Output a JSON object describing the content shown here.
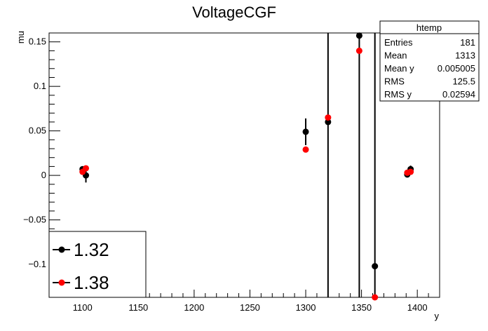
{
  "chart_data": {
    "type": "scatter",
    "title": "VoltageCGF",
    "xlabel": "y",
    "ylabel": "mu",
    "xlim": [
      1070,
      1420
    ],
    "ylim": [
      -0.137,
      0.16
    ],
    "x_ticks": [
      1100,
      1150,
      1200,
      1250,
      1300,
      1350,
      1400
    ],
    "x_tick_labels": [
      "1100",
      "1150",
      "1200",
      "1250",
      "1300",
      "1350",
      "1400"
    ],
    "y_ticks": [
      -0.1,
      -0.05,
      0,
      0.05,
      0.1,
      0.15
    ],
    "y_tick_labels": [
      "−0.1",
      "−0.05",
      "0",
      "0.05",
      "0.1",
      "0.15"
    ],
    "grid": false,
    "legend_position": "bottom-left",
    "series": [
      {
        "name": "1.32",
        "color": "#000000",
        "points": [
          {
            "x": 1100,
            "y": 0.007,
            "err": 0.003
          },
          {
            "x": 1103,
            "y": 0.0,
            "err": 0.008
          },
          {
            "x": 1300,
            "y": 0.049,
            "err": 0.015
          },
          {
            "x": 1320,
            "y": 0.06,
            "err": 0.4
          },
          {
            "x": 1348,
            "y": 0.157,
            "err": 0.4
          },
          {
            "x": 1362,
            "y": -0.102,
            "err": 0.4
          },
          {
            "x": 1391,
            "y": 0.001,
            "err": 0.003
          },
          {
            "x": 1394,
            "y": 0.007,
            "err": 0.004
          }
        ]
      },
      {
        "name": "1.38",
        "color": "#ff0000",
        "points": [
          {
            "x": 1100,
            "y": 0.004
          },
          {
            "x": 1103,
            "y": 0.008
          },
          {
            "x": 1300,
            "y": 0.029
          },
          {
            "x": 1320,
            "y": 0.065
          },
          {
            "x": 1348,
            "y": 0.14
          },
          {
            "x": 1362,
            "y": -0.137
          },
          {
            "x": 1391,
            "y": 0.003
          },
          {
            "x": 1394,
            "y": 0.004
          }
        ]
      }
    ],
    "stats_box": {
      "title": "htemp",
      "rows": [
        {
          "label": "Entries",
          "value": "181"
        },
        {
          "label": "Mean",
          "value": "1313"
        },
        {
          "label": "Mean y",
          "value": "0.005005"
        },
        {
          "label": "RMS",
          "value": "125.5"
        },
        {
          "label": "RMS y",
          "value": "0.02594"
        }
      ]
    }
  }
}
